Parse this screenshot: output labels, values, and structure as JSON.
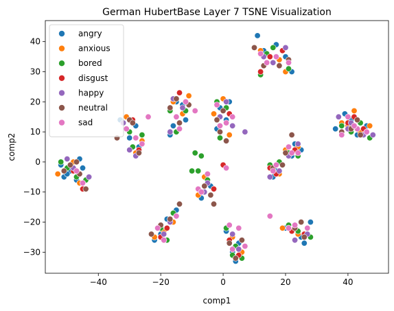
{
  "chart_data": {
    "type": "scatter",
    "title": "German HubertBase Layer 7 TSNE Visualization",
    "xlabel": "comp1",
    "ylabel": "comp2",
    "xlim": [
      -57,
      53
    ],
    "ylim": [
      -37,
      47
    ],
    "xticks": [
      -40,
      -20,
      0,
      20,
      40
    ],
    "yticks": [
      -30,
      -20,
      -10,
      0,
      10,
      20,
      30,
      40
    ],
    "grid": false,
    "legend_position": "top-left",
    "series": [
      {
        "name": "angry",
        "color": "#1f77b4",
        "points": [
          [
            -49,
            -3
          ],
          [
            -47,
            -6
          ],
          [
            -52,
            -1
          ],
          [
            -45,
            -2
          ],
          [
            -51,
            -5
          ],
          [
            -46,
            1
          ],
          [
            -50,
            -4
          ],
          [
            -28,
            12
          ],
          [
            -30,
            8
          ],
          [
            -27,
            5
          ],
          [
            -33,
            14
          ],
          [
            -16,
            12
          ],
          [
            -15,
            20
          ],
          [
            -13,
            19
          ],
          [
            -17,
            9
          ],
          [
            -12,
            14
          ],
          [
            -20,
            -24
          ],
          [
            -18,
            -19
          ],
          [
            -15,
            -16
          ],
          [
            -22,
            -26
          ],
          [
            -1,
            18
          ],
          [
            1,
            14
          ],
          [
            2,
            20
          ],
          [
            -2,
            11
          ],
          [
            -4,
            -8
          ],
          [
            -5,
            -6
          ],
          [
            -7,
            -12
          ],
          [
            1,
            -23
          ],
          [
            3,
            -30
          ],
          [
            5,
            -27
          ],
          [
            4,
            -33
          ],
          [
            11,
            42
          ],
          [
            13,
            37
          ],
          [
            17,
            39
          ],
          [
            20,
            35
          ],
          [
            22,
            30
          ],
          [
            17,
            -3
          ],
          [
            19,
            -1
          ],
          [
            16,
            -5
          ],
          [
            23,
            6
          ],
          [
            22,
            2
          ],
          [
            25,
            4
          ],
          [
            20,
            -22
          ],
          [
            25,
            -25
          ],
          [
            28,
            -20
          ],
          [
            26,
            -27
          ],
          [
            36,
            11
          ],
          [
            41,
            14
          ],
          [
            43,
            9
          ],
          [
            46,
            12
          ],
          [
            39,
            16
          ]
        ]
      },
      {
        "name": "anxious",
        "color": "#ff7f0e",
        "points": [
          [
            -48,
            0
          ],
          [
            -53,
            -4
          ],
          [
            -46,
            -7
          ],
          [
            -31,
            15
          ],
          [
            -28,
            3
          ],
          [
            -26,
            7
          ],
          [
            -16,
            20
          ],
          [
            -13,
            16
          ],
          [
            -11,
            22
          ],
          [
            -19,
            -23
          ],
          [
            -16,
            -20
          ],
          [
            -22,
            -25
          ],
          [
            -3,
            16
          ],
          [
            0,
            21
          ],
          [
            2,
            9
          ],
          [
            -6,
            -5
          ],
          [
            -8,
            -11
          ],
          [
            3,
            -25
          ],
          [
            6,
            -30
          ],
          [
            12,
            37
          ],
          [
            18,
            34
          ],
          [
            20,
            30
          ],
          [
            16,
            -2
          ],
          [
            18,
            -4
          ],
          [
            20,
            4
          ],
          [
            24,
            5
          ],
          [
            19,
            -22
          ],
          [
            24,
            -24
          ],
          [
            27,
            -22
          ],
          [
            40,
            12
          ],
          [
            42,
            17
          ],
          [
            44,
            10
          ],
          [
            47,
            12
          ],
          [
            38,
            13
          ]
        ]
      },
      {
        "name": "bored",
        "color": "#2ca02c",
        "points": [
          [
            -50,
            -2
          ],
          [
            -47,
            -5
          ],
          [
            -44,
            -6
          ],
          [
            -52,
            0
          ],
          [
            -30,
            10
          ],
          [
            -29,
            5
          ],
          [
            -26,
            9
          ],
          [
            -17,
            17
          ],
          [
            -15,
            10
          ],
          [
            -12,
            17
          ],
          [
            -20,
            -22
          ],
          [
            -18,
            -26
          ],
          [
            -16,
            -17
          ],
          [
            -9,
            3
          ],
          [
            -7,
            2
          ],
          [
            -8,
            -3
          ],
          [
            -10,
            -3
          ],
          [
            -2,
            20
          ],
          [
            1,
            18
          ],
          [
            -1,
            8
          ],
          [
            -5,
            -6
          ],
          [
            -3,
            -9
          ],
          [
            1,
            -22
          ],
          [
            4,
            -28
          ],
          [
            6,
            -32
          ],
          [
            3,
            -31
          ],
          [
            12,
            29
          ],
          [
            14,
            36
          ],
          [
            21,
            31
          ],
          [
            16,
            38
          ],
          [
            15,
            -1
          ],
          [
            18,
            0
          ],
          [
            21,
            3
          ],
          [
            24,
            2
          ],
          [
            21,
            -21
          ],
          [
            24,
            -23
          ],
          [
            28,
            -25
          ],
          [
            41,
            10
          ],
          [
            44,
            13
          ],
          [
            47,
            8
          ],
          [
            38,
            12
          ]
        ]
      },
      {
        "name": "disgust",
        "color": "#d62728",
        "points": [
          [
            -48,
            -3
          ],
          [
            -45,
            -9
          ],
          [
            -29,
            14
          ],
          [
            -27,
            4
          ],
          [
            -14,
            23
          ],
          [
            -12,
            20
          ],
          [
            -20,
            -25
          ],
          [
            -18,
            -22
          ],
          [
            -1,
            12
          ],
          [
            2,
            16
          ],
          [
            0,
            -1
          ],
          [
            -3,
            -9
          ],
          [
            2,
            -26
          ],
          [
            5,
            -31
          ],
          [
            12,
            30
          ],
          [
            15,
            35
          ],
          [
            19,
            37
          ],
          [
            17,
            -4
          ],
          [
            15,
            -2
          ],
          [
            22,
            9
          ],
          [
            23,
            4
          ],
          [
            22,
            -23
          ],
          [
            26,
            -24
          ],
          [
            40,
            13
          ],
          [
            45,
            11
          ],
          [
            42,
            15
          ]
        ]
      },
      {
        "name": "happy",
        "color": "#9467bd",
        "points": [
          [
            -48,
            -2
          ],
          [
            -43,
            -5
          ],
          [
            -50,
            1
          ],
          [
            -32,
            13
          ],
          [
            -28,
            2
          ],
          [
            -30,
            4
          ],
          [
            -16,
            21
          ],
          [
            -13,
            18
          ],
          [
            -17,
            10
          ],
          [
            -19,
            -24
          ],
          [
            -17,
            -20
          ],
          [
            -1,
            15
          ],
          [
            1,
            20
          ],
          [
            3,
            12
          ],
          [
            7,
            10
          ],
          [
            -5,
            -7
          ],
          [
            -6,
            -10
          ],
          [
            3,
            -24
          ],
          [
            5,
            -29
          ],
          [
            13,
            35
          ],
          [
            16,
            33
          ],
          [
            20,
            38
          ],
          [
            15,
            -5
          ],
          [
            18,
            -3
          ],
          [
            21,
            2
          ],
          [
            24,
            6
          ],
          [
            21,
            -22
          ],
          [
            23,
            -26
          ],
          [
            27,
            -24
          ],
          [
            37,
            15
          ],
          [
            41,
            13
          ],
          [
            45,
            9
          ],
          [
            48,
            9
          ],
          [
            40,
            11
          ]
        ]
      },
      {
        "name": "neutral",
        "color": "#8c564b",
        "points": [
          [
            -49,
            -1
          ],
          [
            -46,
            -4
          ],
          [
            -44,
            -9
          ],
          [
            -51,
            -3
          ],
          [
            -47,
            0
          ],
          [
            -34,
            8
          ],
          [
            -30,
            14
          ],
          [
            -27,
            3
          ],
          [
            -29,
            13
          ],
          [
            -17,
            18
          ],
          [
            -14,
            13
          ],
          [
            -11,
            19
          ],
          [
            -15,
            21
          ],
          [
            -23,
            -24
          ],
          [
            -20,
            -21
          ],
          [
            -17,
            -19
          ],
          [
            -14,
            -14
          ],
          [
            -2,
            14
          ],
          [
            0,
            17
          ],
          [
            1,
            7
          ],
          [
            -1,
            10
          ],
          [
            -6,
            -8
          ],
          [
            -4,
            -11
          ],
          [
            -3,
            -14
          ],
          [
            2,
            -27
          ],
          [
            4,
            -32
          ],
          [
            6,
            -26
          ],
          [
            10,
            38
          ],
          [
            13,
            32
          ],
          [
            18,
            32
          ],
          [
            21,
            34
          ],
          [
            16,
            -2
          ],
          [
            19,
            -1
          ],
          [
            22,
            9
          ],
          [
            20,
            3
          ],
          [
            23,
            -22
          ],
          [
            25,
            -20
          ],
          [
            26,
            -25
          ],
          [
            38,
            10
          ],
          [
            41,
            11
          ],
          [
            44,
            9
          ],
          [
            46,
            10
          ],
          [
            43,
            14
          ]
        ]
      },
      {
        "name": "sad",
        "color": "#e377c2",
        "points": [
          [
            -47,
            -3
          ],
          [
            -45,
            -7
          ],
          [
            -31,
            11
          ],
          [
            -26,
            6
          ],
          [
            -24,
            15
          ],
          [
            -28,
            8
          ],
          [
            -15,
            15
          ],
          [
            -12,
            20
          ],
          [
            -9,
            17
          ],
          [
            -14,
            11
          ],
          [
            -21,
            -22
          ],
          [
            -19,
            -26
          ],
          [
            -15,
            -18
          ],
          [
            -2,
            19
          ],
          [
            1,
            13
          ],
          [
            3,
            15
          ],
          [
            -1,
            12
          ],
          [
            -8,
            -9
          ],
          [
            -5,
            -4
          ],
          [
            -7,
            -10
          ],
          [
            1,
            -2
          ],
          [
            2,
            -21
          ],
          [
            5,
            -22
          ],
          [
            7,
            -28
          ],
          [
            3,
            -29
          ],
          [
            12,
            36
          ],
          [
            14,
            33
          ],
          [
            17,
            35
          ],
          [
            21,
            33
          ],
          [
            16,
            -3
          ],
          [
            17,
            -1
          ],
          [
            21,
            5
          ],
          [
            22,
            3
          ],
          [
            24,
            3
          ],
          [
            15,
            -18
          ],
          [
            21,
            -22
          ],
          [
            23,
            -21
          ],
          [
            27,
            -22
          ],
          [
            38,
            9
          ],
          [
            40,
            15
          ],
          [
            43,
            11
          ],
          [
            42,
            12
          ],
          [
            46,
            10
          ]
        ]
      }
    ]
  }
}
